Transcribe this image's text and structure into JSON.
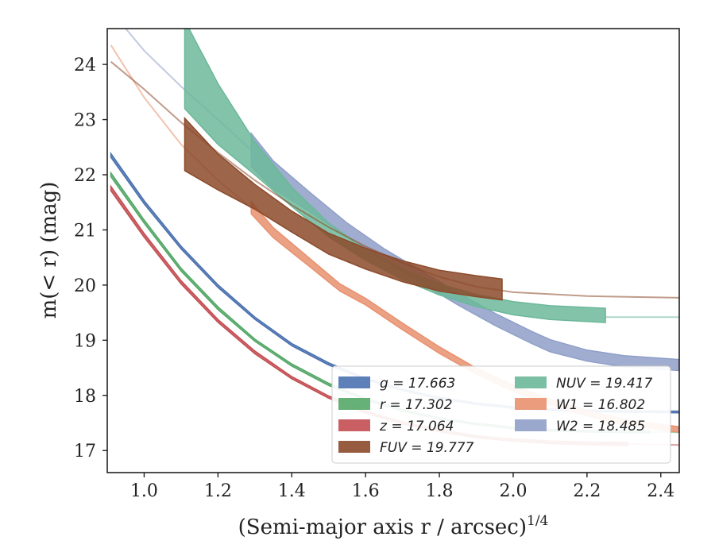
{
  "chart_data": {
    "type": "line",
    "xlabel": "(Semi-major axis r / arcsec)",
    "xlabel_exponent": "1/4",
    "ylabel": "m(< r) (mag)",
    "xlim": [
      0.9,
      2.45
    ],
    "ylim": [
      24.65,
      16.6
    ],
    "y_inverted": true,
    "xticks": [
      1.0,
      1.2,
      1.4,
      1.6,
      1.8,
      2.0,
      2.2,
      2.4
    ],
    "xtick_labels": [
      "1.0",
      "1.2",
      "1.4",
      "1.6",
      "1.8",
      "2.0",
      "2.2",
      "2.4"
    ],
    "yticks": [
      17,
      18,
      19,
      20,
      21,
      22,
      23,
      24
    ],
    "ytick_labels": [
      "17",
      "18",
      "19",
      "20",
      "21",
      "22",
      "23",
      "24"
    ],
    "grid": false,
    "legend_position": "bottom-right",
    "legend_columns": 2,
    "legend": [
      {
        "band": "g",
        "label": "g = 17.663",
        "color": "#4c72b0"
      },
      {
        "band": "r",
        "label": "r = 17.302",
        "color": "#55a868"
      },
      {
        "band": "z",
        "label": "z = 17.064",
        "color": "#c44e52"
      },
      {
        "band": "FUV",
        "label": "FUV = 19.777",
        "color": "#8c4a2a"
      },
      {
        "band": "NUV",
        "label": "NUV = 19.417",
        "color": "#6cb89a"
      },
      {
        "band": "W1",
        "label": "W1 = 16.802",
        "color": "#e8916f"
      },
      {
        "band": "W2",
        "label": "W2 = 18.485",
        "color": "#8f9fc8"
      }
    ],
    "series": [
      {
        "name": "z = 17.064",
        "color": "#c44e52",
        "kind": "band",
        "x": [
          0.91,
          1.0,
          1.1,
          1.2,
          1.3,
          1.4,
          1.5,
          1.6,
          1.7,
          1.8,
          1.9,
          2.0,
          2.1,
          2.2,
          2.31
        ],
        "y": [
          21.75,
          20.9,
          20.05,
          19.35,
          18.78,
          18.32,
          17.97,
          17.7,
          17.5,
          17.36,
          17.25,
          17.19,
          17.15,
          17.13,
          17.12
        ],
        "width": [
          0.08,
          0.07,
          0.06,
          0.05,
          0.05,
          0.04,
          0.04,
          0.04,
          0.04,
          0.04,
          0.04,
          0.04,
          0.05,
          0.05,
          0.06
        ],
        "extrap_x": [
          2.31,
          2.45
        ],
        "extrap_y": [
          17.12,
          17.1
        ]
      },
      {
        "name": "r = 17.302",
        "color": "#55a868",
        "kind": "band",
        "x": [
          0.91,
          1.0,
          1.1,
          1.2,
          1.3,
          1.4,
          1.5,
          1.6,
          1.7,
          1.8,
          1.9,
          2.0,
          2.1,
          2.2,
          2.37
        ],
        "y": [
          22.0,
          21.15,
          20.28,
          19.58,
          19.0,
          18.55,
          18.2,
          17.93,
          17.73,
          17.58,
          17.48,
          17.41,
          17.37,
          17.35,
          17.34
        ],
        "width": [
          0.07,
          0.06,
          0.05,
          0.05,
          0.04,
          0.04,
          0.04,
          0.03,
          0.03,
          0.03,
          0.03,
          0.03,
          0.03,
          0.03,
          0.04
        ],
        "extrap_x": [
          2.37,
          2.45
        ],
        "extrap_y": [
          17.34,
          17.33
        ]
      },
      {
        "name": "g = 17.663",
        "color": "#4c72b0",
        "kind": "band",
        "x": [
          0.91,
          1.0,
          1.1,
          1.2,
          1.3,
          1.4,
          1.5,
          1.6,
          1.7,
          1.8,
          1.9,
          2.0,
          2.1,
          2.2,
          2.3,
          2.45
        ],
        "y": [
          22.35,
          21.5,
          20.68,
          19.98,
          19.4,
          18.92,
          18.57,
          18.3,
          18.1,
          17.95,
          17.85,
          17.78,
          17.74,
          17.72,
          17.71,
          17.7
        ],
        "width": [
          0.07,
          0.06,
          0.05,
          0.05,
          0.04,
          0.04,
          0.04,
          0.03,
          0.03,
          0.03,
          0.03,
          0.03,
          0.03,
          0.03,
          0.03,
          0.03
        ]
      },
      {
        "name": "W1 = 16.802",
        "color": "#e8916f",
        "kind": "band",
        "x": [
          1.29,
          1.35,
          1.45,
          1.53,
          1.6,
          1.7,
          1.8,
          1.9,
          2.0,
          2.1,
          2.2,
          2.3,
          2.45
        ],
        "y": [
          21.4,
          20.95,
          20.4,
          19.96,
          19.7,
          19.25,
          18.82,
          18.44,
          18.13,
          17.88,
          17.68,
          17.52,
          17.38
        ],
        "width": [
          0.22,
          0.18,
          0.15,
          0.13,
          0.12,
          0.12,
          0.12,
          0.11,
          0.11,
          0.11,
          0.1,
          0.1,
          0.1
        ],
        "extrap_x": [
          0.91,
          1.0,
          1.1,
          1.2,
          1.29
        ],
        "extrap_y": [
          24.35,
          23.4,
          22.55,
          21.9,
          21.4
        ]
      },
      {
        "name": "W2 = 18.485",
        "color": "#8f9fc8",
        "kind": "band",
        "x": [
          1.29,
          1.35,
          1.45,
          1.55,
          1.65,
          1.75,
          1.85,
          1.95,
          2.05,
          2.1,
          2.2,
          2.3,
          2.45
        ],
        "y": [
          22.45,
          22.0,
          21.5,
          21.0,
          20.55,
          20.15,
          19.75,
          19.38,
          19.05,
          18.9,
          18.72,
          18.62,
          18.55
        ],
        "width": [
          0.6,
          0.5,
          0.35,
          0.25,
          0.22,
          0.22,
          0.22,
          0.22,
          0.22,
          0.22,
          0.2,
          0.2,
          0.2
        ],
        "extrap_x": [
          0.95,
          1.0,
          1.1,
          1.2,
          1.29
        ],
        "extrap_y": [
          24.65,
          24.25,
          23.6,
          23.0,
          22.45
        ]
      },
      {
        "name": "NUV = 19.417",
        "color": "#6cb89a",
        "kind": "band",
        "x": [
          1.11,
          1.2,
          1.3,
          1.4,
          1.5,
          1.6,
          1.7,
          1.8,
          1.9,
          2.0,
          2.1,
          2.25
        ],
        "y": [
          24.0,
          23.1,
          22.3,
          21.6,
          21.0,
          20.55,
          20.2,
          19.92,
          19.72,
          19.58,
          19.5,
          19.45
        ],
        "width": [
          1.6,
          1.1,
          0.6,
          0.35,
          0.25,
          0.2,
          0.2,
          0.2,
          0.22,
          0.24,
          0.25,
          0.26
        ],
        "extrap_x": [
          2.25,
          2.45
        ],
        "extrap_y": [
          19.42,
          19.42
        ]
      },
      {
        "name": "FUV = 19.777",
        "color": "#8c4a2a",
        "kind": "band",
        "x": [
          1.11,
          1.2,
          1.3,
          1.4,
          1.5,
          1.6,
          1.7,
          1.8,
          1.9,
          1.97
        ],
        "y": [
          22.55,
          22.05,
          21.6,
          21.15,
          20.75,
          20.48,
          20.25,
          20.08,
          19.98,
          19.92
        ],
        "width": [
          0.95,
          0.65,
          0.45,
          0.38,
          0.38,
          0.38,
          0.38,
          0.38,
          0.38,
          0.38
        ],
        "extrap_x": [
          0.91,
          1.0,
          1.1,
          1.2,
          1.3,
          1.4,
          1.5,
          1.6,
          1.7,
          1.8,
          1.9,
          2.0,
          2.2,
          2.45
        ],
        "extrap_y": [
          24.05,
          23.55,
          22.95,
          22.4,
          21.9,
          21.45,
          21.05,
          20.7,
          20.4,
          20.15,
          19.97,
          19.87,
          19.8,
          19.77
        ]
      }
    ]
  }
}
